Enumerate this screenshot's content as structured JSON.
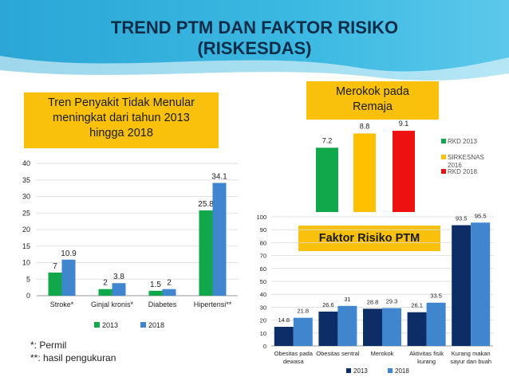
{
  "title": {
    "line1": "TREND PTM DAN FAKTOR RISIKO",
    "line2": "(RISKESDAS)"
  },
  "callouts": {
    "ptm": [
      "Tren Penyakit Tidak Menular",
      "meningkat dari tahun 2013",
      "hingga 2018"
    ],
    "merokok": [
      "Merokok pada",
      "Remaja"
    ],
    "faktor": "Faktor Risiko PTM"
  },
  "notes": [
    "*: Permil",
    "**: hasil pengukuran"
  ],
  "colors": {
    "green": "#10a84a",
    "blue": "#3f86cf",
    "navy": "#0d2d66",
    "yellow": "#ffc000",
    "red": "#ee1111",
    "callout": "#f9c10c"
  },
  "chart_data": [
    {
      "type": "bar",
      "categories": [
        "Stroke*",
        "Ginjal kronis*",
        "Diabetes",
        "Hipertensi**"
      ],
      "ylim": [
        0,
        40
      ],
      "yticks": [
        0,
        5,
        10,
        15,
        20,
        25,
        30,
        35,
        40
      ],
      "grid": true,
      "legend": "bottom",
      "series": [
        {
          "name": "2013",
          "values": [
            7,
            2,
            1.5,
            25.8
          ],
          "labels": [
            "7",
            "2",
            "1.5",
            "25.8"
          ],
          "color": "#10a84a"
        },
        {
          "name": "2018",
          "values": [
            10.9,
            3.8,
            2,
            34.1
          ],
          "labels": [
            "10.9",
            "3.8",
            "2",
            "34.1"
          ],
          "color": "#3f86cf"
        }
      ]
    },
    {
      "type": "bar",
      "categories": [
        "RKD 2013",
        "SIRKESNAS 2016",
        "RKD 2018"
      ],
      "legend_entries": [
        "RKD 2013",
        "SIRKESNAS",
        "2016",
        "RKD 2018"
      ],
      "values": [
        7.2,
        8.8,
        9.1
      ],
      "labels": [
        "7.2",
        "8.8",
        "9.1"
      ],
      "colors": [
        "#10a84a",
        "#ffc000",
        "#ee1111"
      ],
      "legend": "right"
    },
    {
      "type": "bar",
      "categories": [
        [
          "Obesitas pada",
          "dewasa"
        ],
        [
          "Obesitas sentral"
        ],
        [
          "Merokok"
        ],
        [
          "Aktivitas fisik",
          "kurang"
        ],
        [
          "Kurang makan",
          "sayur dan buah"
        ]
      ],
      "ylim": [
        0,
        100
      ],
      "yticks": [
        0,
        10,
        20,
        30,
        40,
        50,
        60,
        70,
        80,
        90,
        100
      ],
      "grid": true,
      "legend": "bottom",
      "series": [
        {
          "name": "2013",
          "values": [
            14.8,
            26.6,
            28.8,
            26.1,
            93.5
          ],
          "labels": [
            "14.8",
            "26.6",
            "28.8",
            "26.1",
            "93.5"
          ],
          "color": "#0d2d66"
        },
        {
          "name": "2018",
          "values": [
            21.8,
            31,
            29.3,
            33.5,
            95.5
          ],
          "labels": [
            "21.8",
            "31",
            "29.3",
            "33.5",
            "95.5"
          ],
          "color": "#3f86cf"
        }
      ]
    }
  ]
}
